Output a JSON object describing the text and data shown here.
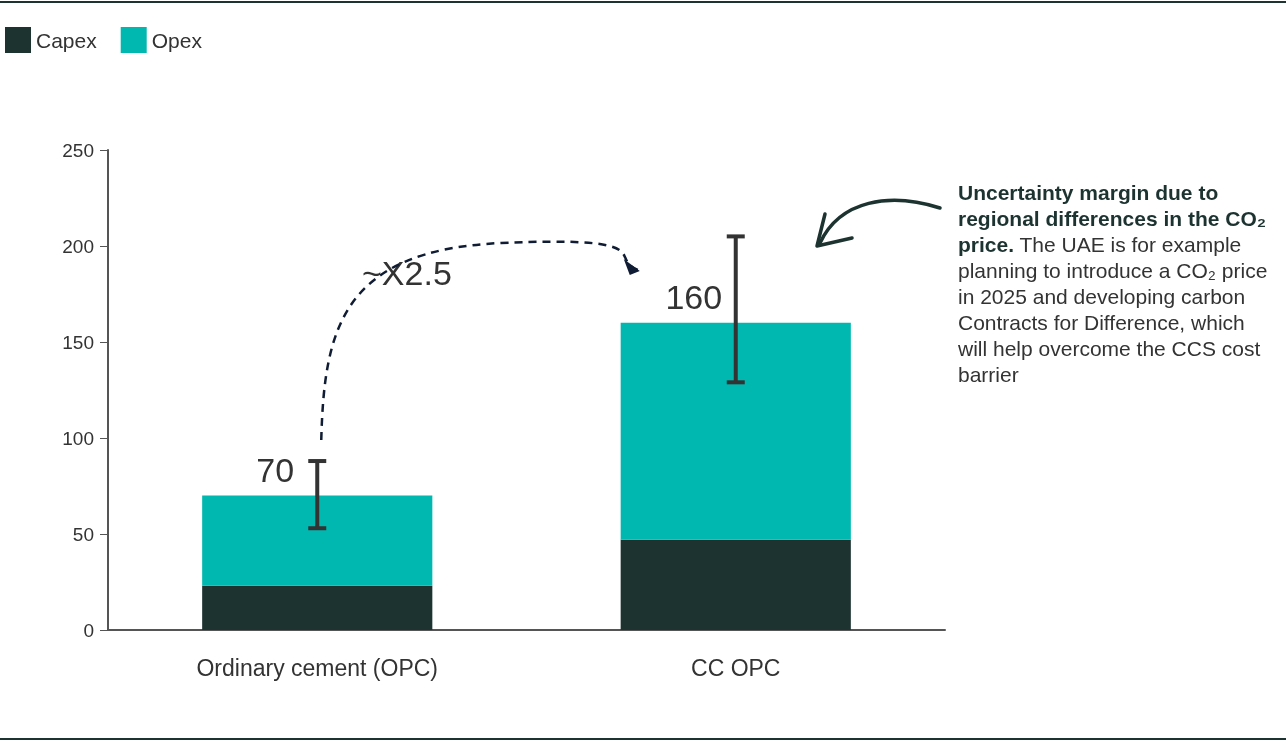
{
  "chart_data": {
    "type": "bar",
    "stacked": true,
    "categories": [
      "Ordinary cement (OPC)",
      "CC OPC"
    ],
    "series": [
      {
        "name": "Capex",
        "color": "#1c3330",
        "values": [
          23,
          47
        ]
      },
      {
        "name": "Opex",
        "color": "#00b8b0",
        "values": [
          47,
          113
        ],
        "errors": [
          [
            53,
            88
          ],
          [
            129,
            205
          ]
        ]
      }
    ],
    "totals": [
      "70",
      "160"
    ],
    "ylim": [
      0,
      250
    ],
    "yticks": [
      0,
      50,
      100,
      150,
      200,
      250
    ],
    "grid": false,
    "legend": "top left",
    "annotations": [
      "~X2.5",
      "Uncertainty margin due to regional differences in the CO₂ price.",
      "The UAE is for example planning to introduce a CO₂ price in 2025 and developing carbon Contracts for Difference, which will help overcome the CCS cost barrier"
    ]
  }
}
